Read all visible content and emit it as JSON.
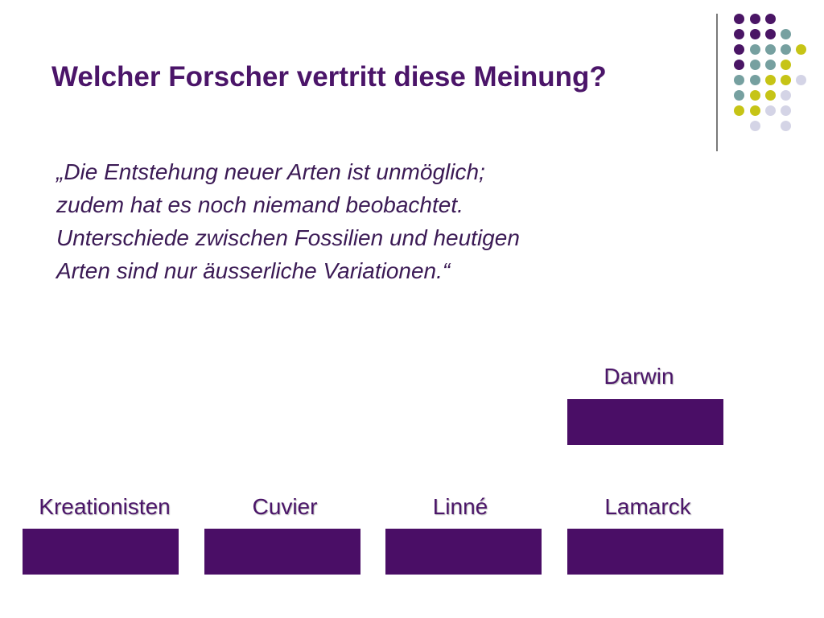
{
  "slide": {
    "title": "Welcher Forscher vertritt diese Meinung?",
    "quote_lines": [
      "„Die Entstehung neuer Arten ist unmöglich;",
      "zudem hat es noch niemand beobachtet.",
      "Unterschiede zwischen Fossilien und heutigen",
      "Arten sind nur äusserliche Variationen.“"
    ]
  },
  "answers": [
    {
      "label": "Darwin"
    },
    {
      "label": "Kreationisten"
    },
    {
      "label": "Cuvier"
    },
    {
      "label": "Linné"
    },
    {
      "label": "Lamarck"
    }
  ],
  "colors": {
    "title": "#4b1569",
    "answer_box": "#4a0e66",
    "dot_purple": "#4a1565",
    "dot_teal": "#76a0a0",
    "dot_yellow": "#c6c416",
    "dot_lavender": "#d4d4e6"
  }
}
